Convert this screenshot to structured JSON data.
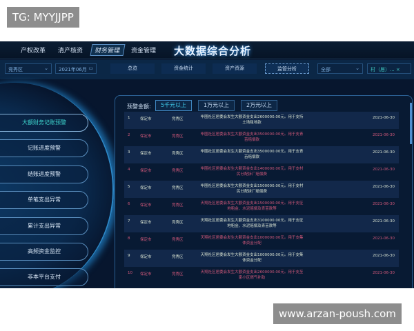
{
  "watermarks": {
    "top": "TG: MYYJJPP",
    "bottom": "www.arzan-poush.com"
  },
  "nav": {
    "items": [
      "产权改革",
      "清产核资",
      "财务管理",
      "资金管理"
    ],
    "active": 2,
    "title": "大数据综合分析"
  },
  "filters": {
    "region": "竞秀区",
    "date": "2021年06月",
    "tabs": [
      "总览",
      "资金统计",
      "资产资源",
      "监管分析"
    ],
    "active_tab": 3,
    "scope": "全部",
    "village": "村（居）...",
    "clear": "×",
    "chevron": "⌄",
    "calendar": "▭"
  },
  "sidebar": {
    "items": [
      "大额财务记账预警",
      "记账进度预警",
      "结账进度预警",
      "单笔支出异常",
      "累计支出异常",
      "高频资金监控",
      "非本平台支付"
    ],
    "active": 0
  },
  "filter_amount": {
    "label": "预警金额:",
    "options": [
      "5千元以上",
      "1万元以上",
      "2万元以上"
    ],
    "active": 0
  },
  "highlight_color": "#d0587a",
  "rows": [
    {
      "no": "1",
      "city": "保定市",
      "district": "竞秀区",
      "desc": "毕圈社区居委会发生大额资金支出2600000.00元。用于支持土场租地款",
      "date": "2021-06-30",
      "alert": false
    },
    {
      "no": "2",
      "city": "保定市",
      "district": "竞秀区",
      "desc": "毕圈社区居委会发生大额资金支出3500000.00元。用于支青苗赔偿款",
      "date": "2021-06-30",
      "alert": true
    },
    {
      "no": "3",
      "city": "保定市",
      "district": "竞秀区",
      "desc": "毕圈社区居委会发生大额资金支出3500000.00元。用于支青苗赔偿款",
      "date": "2021-06-30",
      "alert": false
    },
    {
      "no": "4",
      "city": "保定市",
      "district": "竞秀区",
      "desc": "毕圈社区居委会发生大额资金支出1400000.00元。用于支村民分配拆厂赔偿费",
      "date": "2021-06-30",
      "alert": true
    },
    {
      "no": "5",
      "city": "保定市",
      "district": "竞秀区",
      "desc": "毕圈社区居委会发生大额资金支出1500000.00元。用于支村民分配拆厂赔偿费",
      "date": "2021-06-30",
      "alert": false
    },
    {
      "no": "6",
      "city": "保定市",
      "district": "竞秀区",
      "desc": "天翔社区居委会发生大额资金支出1500000.00元。用于支征地租金、水泥赔偿及青苗款等",
      "date": "2021-06-30",
      "alert": true
    },
    {
      "no": "7",
      "city": "保定市",
      "district": "竞秀区",
      "desc": "天翔社区居委会发生大额资金支出3100000.00元。用于支征地租金、水泥赔偿及青苗款等",
      "date": "2021-06-30",
      "alert": false
    },
    {
      "no": "8",
      "city": "保定市",
      "district": "竞秀区",
      "desc": "天翔社区居委会发生大额资金支出1000000.00元。用于支集体资金分配",
      "date": "2021-06-30",
      "alert": true
    },
    {
      "no": "9",
      "city": "保定市",
      "district": "竞秀区",
      "desc": "天翔社区居委会发生大额资金支出1000000.00元。用于支集体资金分配",
      "date": "2021-06-30",
      "alert": false
    },
    {
      "no": "10",
      "city": "保定市",
      "district": "竞秀区",
      "desc": "天翔社区居委会发生大额资金支出2600000.00元。用于支至家小区燃气补助",
      "date": "2021-06-30",
      "alert": true
    }
  ]
}
